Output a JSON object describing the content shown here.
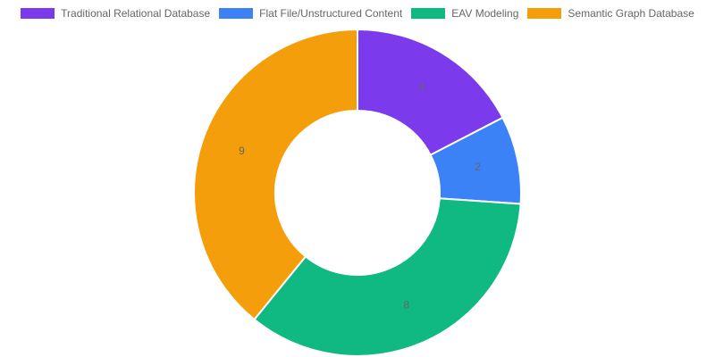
{
  "chart_data": {
    "type": "doughnut",
    "title": "",
    "labels": [
      "Traditional Relational Database",
      "Flat File/Unstructured Content",
      "EAV Modeling",
      "Semantic Graph Database"
    ],
    "values": [
      4,
      2,
      8,
      9
    ],
    "colors": [
      "#7c3aed",
      "#3b82f6",
      "#10b981",
      "#f59e0b"
    ],
    "legend_position": "top",
    "data_labels": [
      "4",
      "2",
      "8",
      "9"
    ],
    "center": [
      400,
      216
    ],
    "outer_radius": 183,
    "inner_radius": 92
  },
  "legend": {
    "items": [
      {
        "label": "Traditional Relational Database",
        "color": "#7c3aed"
      },
      {
        "label": "Flat File/Unstructured Content",
        "color": "#3b82f6"
      },
      {
        "label": "EAV Modeling",
        "color": "#10b981"
      },
      {
        "label": "Semantic Graph Database",
        "color": "#f59e0b"
      }
    ]
  }
}
